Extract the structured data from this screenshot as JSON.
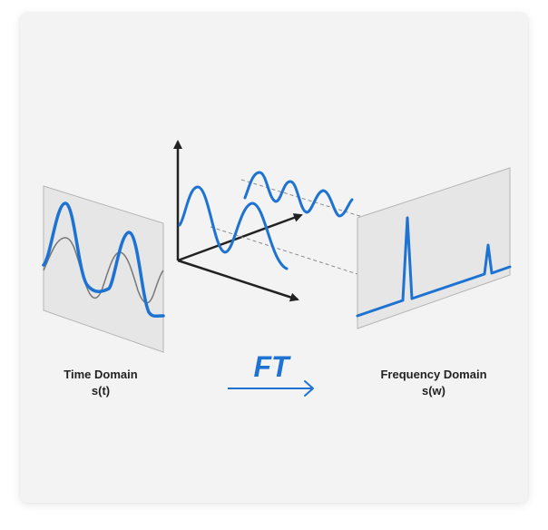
{
  "colors": {
    "accent": "#1e73d2",
    "axis": "#222222",
    "gray_wave": "#777777",
    "panel_fill": "#e6e6e6",
    "panel_stroke": "#b5b5b5",
    "background": "#f3f3f3"
  },
  "time_domain": {
    "title": "Time Domain",
    "symbol": "s(t)"
  },
  "transform": {
    "label": "FT"
  },
  "frequency_domain": {
    "title": "Frequency Domain",
    "symbol": "s(w)"
  }
}
